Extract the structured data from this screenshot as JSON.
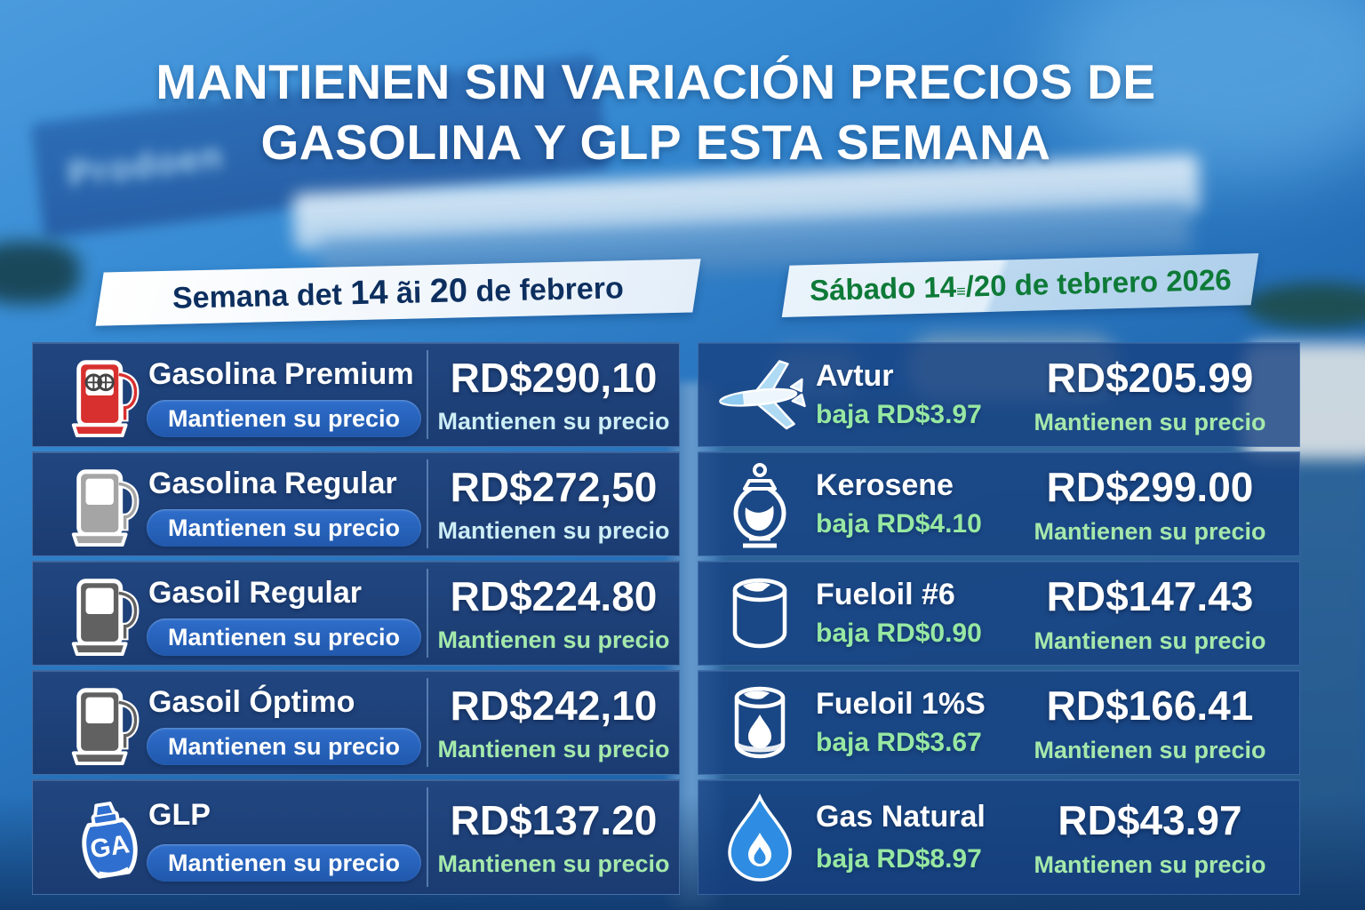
{
  "title": {
    "line1": "MANTIENEN SIN VARIACIÓN PRECIOS DE",
    "line2_strong": "GASOLINA Y GLP",
    "line2_rest": " ESTA SEMANA"
  },
  "background": {
    "station_brand": "Prodoen"
  },
  "banners": {
    "week": {
      "segments": [
        {
          "text": "Semana",
          "style": "h"
        },
        {
          "text": " det ",
          "style": "n"
        },
        {
          "text": "14",
          "style": "hh"
        },
        {
          "text": " ãi ",
          "style": "n"
        },
        {
          "text": "20",
          "style": "hh"
        },
        {
          "text": " de febrero",
          "style": "n"
        }
      ]
    },
    "date": {
      "segments": [
        {
          "text": "Sábado 14",
          "style": "h"
        },
        {
          "text": "≡",
          "style": "small"
        },
        {
          "text": "/20",
          "style": "h"
        },
        {
          "text": " de tebrero ",
          "style": "n"
        },
        {
          "text": "2026",
          "style": "h"
        }
      ]
    }
  },
  "colors": {
    "note_cyan": "#cdeef5",
    "note_green": "#a5e9ab",
    "change_green": "#97e8a2",
    "banner_week_text": "#0d2f5f",
    "banner_date_text": "#0e7a38",
    "card_left_bg": "#1b3c72",
    "card_right_bg": "#164080",
    "badge_bg": "#2763bc"
  },
  "columns": {
    "left": {
      "items": [
        {
          "icon": "fuel-pump-red",
          "name": "Gasolina Premium",
          "badge": "Mantienen su precio",
          "price": "RD$290,10",
          "price_note": "Mantienen su precio",
          "note_color": "cyan"
        },
        {
          "icon": "fuel-pump-silver",
          "name": "Gasolina Regular",
          "badge": "Mantienen su precio",
          "price": "RD$272,50",
          "price_note": "Mantienen su precio",
          "note_color": "cyan"
        },
        {
          "icon": "fuel-pump-dark",
          "name": "Gasoil Regular",
          "badge": "Mantienen su precio",
          "price": "RD$224.80",
          "price_note": "Mantienen su precio",
          "note_color": "green"
        },
        {
          "icon": "fuel-pump-dark",
          "name": "Gasoil Óptimo",
          "badge": "Mantienen su precio",
          "price": "RD$242,10",
          "price_note": "Mantienen su precio",
          "note_color": "green"
        },
        {
          "icon": "gas-cylinder",
          "name": "GLP",
          "badge": "Mantienen su precio",
          "price": "RD$137.20",
          "price_note": "Mantienen su precio",
          "note_color": "green"
        }
      ]
    },
    "right": {
      "items": [
        {
          "icon": "airplane",
          "name": "Avtur",
          "change": "baja RD$3.97",
          "price": "RD$205.99",
          "price_note": "Mantienen su precio"
        },
        {
          "icon": "kerosene-lamp",
          "name": "Kerosene",
          "change": "baja RD$4.10",
          "price": "RD$299.00",
          "price_note": "Mantienen su precio"
        },
        {
          "icon": "oil-drum",
          "name": "Fueloil #6",
          "change": "baja RD$0.90",
          "price": "RD$147.43",
          "price_note": "Mantienen su precio"
        },
        {
          "icon": "oil-drum-flame",
          "name": "Fueloil 1%S",
          "change": "baja RD$3.67",
          "price": "RD$166.41",
          "price_note": "Mantienen su precio"
        },
        {
          "icon": "gas-flame-drop",
          "name": "Gas Natural",
          "change": "baja RD$8.97",
          "price": "RD$43.97",
          "price_note": "Mantienen su precio"
        }
      ]
    }
  }
}
